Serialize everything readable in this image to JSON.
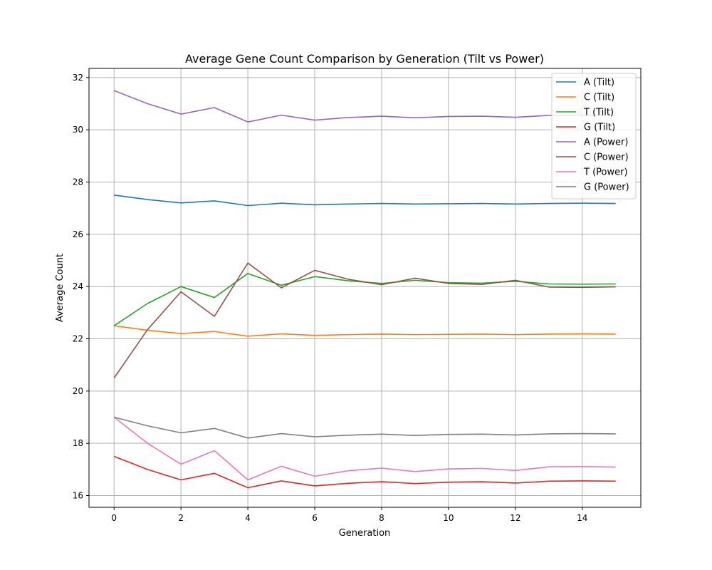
{
  "chart_data": {
    "type": "line",
    "title": "Average Gene Count Comparison by Generation (Tilt vs Power)",
    "xlabel": "Generation",
    "ylabel": "Average Count",
    "xlim": [
      -0.75,
      15.75
    ],
    "ylim": [
      15.55,
      32.35
    ],
    "xticks": [
      0,
      2,
      4,
      6,
      8,
      10,
      12,
      14
    ],
    "xtick_labels": [
      "0",
      "2",
      "4",
      "6",
      "8",
      "10",
      "12",
      "14"
    ],
    "yticks": [
      16,
      18,
      20,
      22,
      24,
      26,
      28,
      30,
      32
    ],
    "ytick_labels": [
      "16",
      "18",
      "20",
      "22",
      "24",
      "26",
      "28",
      "30",
      "32"
    ],
    "grid": true,
    "legend_position": "top-right",
    "x": [
      0,
      1,
      2,
      3,
      4,
      5,
      6,
      7,
      8,
      9,
      10,
      11,
      12,
      13,
      14,
      15
    ],
    "series": [
      {
        "name": "A (Tilt)",
        "color": "#1f77b4",
        "values": [
          27.5,
          27.33,
          27.2,
          27.28,
          27.1,
          27.19,
          27.13,
          27.16,
          27.18,
          27.16,
          27.17,
          27.18,
          27.16,
          27.18,
          27.19,
          27.18
        ]
      },
      {
        "name": "C (Tilt)",
        "color": "#ff7f0e",
        "values": [
          22.5,
          22.33,
          22.2,
          22.28,
          22.1,
          22.19,
          22.13,
          22.16,
          22.18,
          22.16,
          22.17,
          22.18,
          22.16,
          22.18,
          22.19,
          22.18
        ]
      },
      {
        "name": "T (Tilt)",
        "color": "#2ca02c",
        "values": [
          22.5,
          23.35,
          24.0,
          23.58,
          24.5,
          24.05,
          24.38,
          24.22,
          24.12,
          24.24,
          24.15,
          24.13,
          24.2,
          24.1,
          24.09,
          24.1
        ]
      },
      {
        "name": "G (Tilt)",
        "color": "#d62728",
        "values": [
          17.5,
          17.0,
          16.6,
          16.85,
          16.3,
          16.56,
          16.37,
          16.47,
          16.53,
          16.46,
          16.51,
          16.53,
          16.48,
          16.55,
          16.56,
          16.55
        ]
      },
      {
        "name": "A (Power)",
        "color": "#9467bd",
        "values": [
          31.5,
          31.0,
          30.6,
          30.85,
          30.3,
          30.56,
          30.37,
          30.47,
          30.52,
          30.46,
          30.51,
          30.52,
          30.48,
          30.55,
          30.56,
          30.55
        ]
      },
      {
        "name": "C (Power)",
        "color": "#8c564b",
        "values": [
          20.5,
          22.35,
          23.8,
          22.86,
          24.9,
          23.95,
          24.62,
          24.28,
          24.07,
          24.32,
          24.12,
          24.08,
          24.24,
          23.98,
          23.97,
          23.99
        ]
      },
      {
        "name": "T (Power)",
        "color": "#e377c2",
        "values": [
          19.0,
          18.0,
          17.2,
          17.72,
          16.6,
          17.12,
          16.74,
          16.95,
          17.05,
          16.92,
          17.02,
          17.04,
          16.96,
          17.1,
          17.11,
          17.09
        ]
      },
      {
        "name": "G (Power)",
        "color": "#7f7f7f",
        "values": [
          19.0,
          18.67,
          18.4,
          18.57,
          18.2,
          18.37,
          18.25,
          18.31,
          18.35,
          18.3,
          18.34,
          18.35,
          18.32,
          18.36,
          18.37,
          18.36
        ]
      }
    ]
  }
}
